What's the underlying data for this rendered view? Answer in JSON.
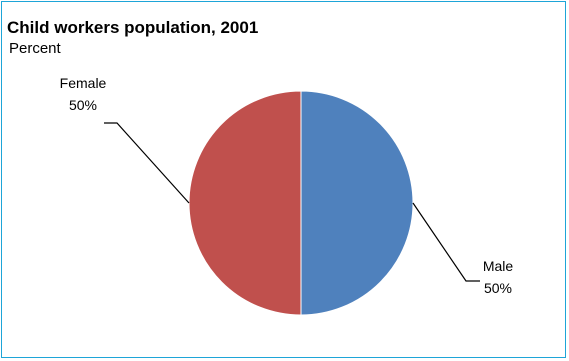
{
  "chart_data": {
    "type": "pie",
    "title": "Child workers population, 2001",
    "subtitle": "Percent",
    "slices": [
      {
        "name": "Male",
        "value": 50,
        "label": "50%",
        "color": "#4f81bd"
      },
      {
        "name": "Female",
        "value": 50,
        "label": "50%",
        "color": "#c0504d"
      }
    ],
    "border_color": "#1ea5d8",
    "leader_lines": true
  }
}
